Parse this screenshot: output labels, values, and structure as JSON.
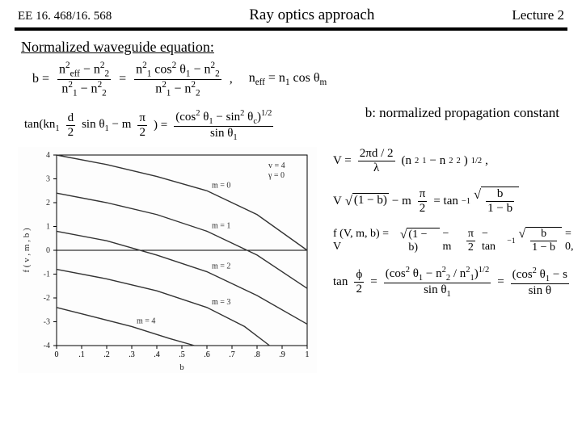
{
  "header": {
    "course": "EE 16. 468/16. 568",
    "title": "Ray optics approach",
    "lecture": "Lecture 2"
  },
  "subheading": "Normalized waveguide equation:",
  "eq1": {
    "lhs": "b =",
    "f1num": "n²_eff − n²₂",
    "f1den": "n²₁ − n²₂",
    "mid1": "=",
    "f2num": "n²₁ cos² θ₁ − n²₂",
    "f2den": "n²₁ − n²₂",
    "comma": ",",
    "neff": "n_eff = n₁ cos θ_m"
  },
  "note": "b: normalized propagation constant",
  "eq2": {
    "pre": "tan(kn₁",
    "fnum": "d",
    "fden": "2",
    "mid": "sin θ₁ − m",
    "f2num": "π",
    "f2den": "2",
    "post": ") =",
    "rnum": "(cos² θ₁ − sin² θ_c)^{1/2}",
    "rden": "sin θ₁"
  },
  "rhs": {
    "V": {
      "pre": "V =",
      "num": "2πd / 2",
      "den": "λ",
      "post": "(n²₁ − n²₂)^{1/2},"
    },
    "line2": {
      "pre": "V",
      "sqrt1": "(1 − b)",
      "mid": "− m",
      "fnum": "π",
      "fden": "2",
      "eq": "= tan⁻¹",
      "sq2n": "b",
      "sq2d": "1 − b"
    },
    "line3": {
      "pre": "f (V, m, b) = V",
      "sqrt1": "(1 − b)",
      "mid": "− m",
      "fnum": "π",
      "fden": "2",
      "post": "− tan⁻¹",
      "sq2n": "b",
      "sq2d": "1 − b",
      "tail": "= 0,"
    },
    "line4": {
      "pre": "tan",
      "lnum": "ϕ",
      "lden": "2",
      "eq": "=",
      "rnum": "(cos² θ₁ − n²₂ / n²₁)^{1/2}",
      "rden": "sin θ₁",
      "eq2": "=",
      "r2num": "(cos² θ₁ − s",
      "r2den": "sin θ"
    }
  },
  "plot": {
    "type": "line",
    "background_color": "#fdfdfd",
    "axis_color": "#000000",
    "grid_color": "#cccccc",
    "text_color": "#2a2a2a",
    "line_color": "#333333",
    "xlabel": "b",
    "ylabel": "f ( v , m , b )",
    "xlim": [
      0,
      1
    ],
    "xtick_step": 0.1,
    "ylim": [
      -4,
      4
    ],
    "ytick_step": 1,
    "label_fontsize": 10,
    "legend": [
      "v = 4",
      "γ = 0"
    ],
    "series": [
      {
        "m": 0,
        "label": "m = 0",
        "pts": [
          [
            0.0,
            4.0
          ],
          [
            0.2,
            3.6
          ],
          [
            0.4,
            3.1
          ],
          [
            0.6,
            2.5
          ],
          [
            0.8,
            1.5
          ],
          [
            1.0,
            0.0
          ]
        ]
      },
      {
        "m": 1,
        "label": "m = 1",
        "pts": [
          [
            0.0,
            2.4
          ],
          [
            0.2,
            2.0
          ],
          [
            0.4,
            1.5
          ],
          [
            0.6,
            0.8
          ],
          [
            0.8,
            -0.2
          ],
          [
            1.0,
            -1.6
          ]
        ]
      },
      {
        "m": 2,
        "label": "m = 2",
        "pts": [
          [
            0.0,
            0.8
          ],
          [
            0.2,
            0.4
          ],
          [
            0.4,
            -0.2
          ],
          [
            0.6,
            -0.9
          ],
          [
            0.8,
            -1.9
          ],
          [
            1.0,
            -3.1
          ]
        ]
      },
      {
        "m": 3,
        "label": "m = 3",
        "pts": [
          [
            0.0,
            -0.8
          ],
          [
            0.2,
            -1.2
          ],
          [
            0.4,
            -1.7
          ],
          [
            0.6,
            -2.4
          ],
          [
            0.75,
            -3.2
          ],
          [
            0.85,
            -4.0
          ]
        ]
      },
      {
        "m": 4,
        "label": "m = 4",
        "pts": [
          [
            0.0,
            -2.4
          ],
          [
            0.15,
            -2.8
          ],
          [
            0.3,
            -3.2
          ],
          [
            0.45,
            -3.7
          ],
          [
            0.55,
            -4.0
          ]
        ]
      }
    ]
  }
}
